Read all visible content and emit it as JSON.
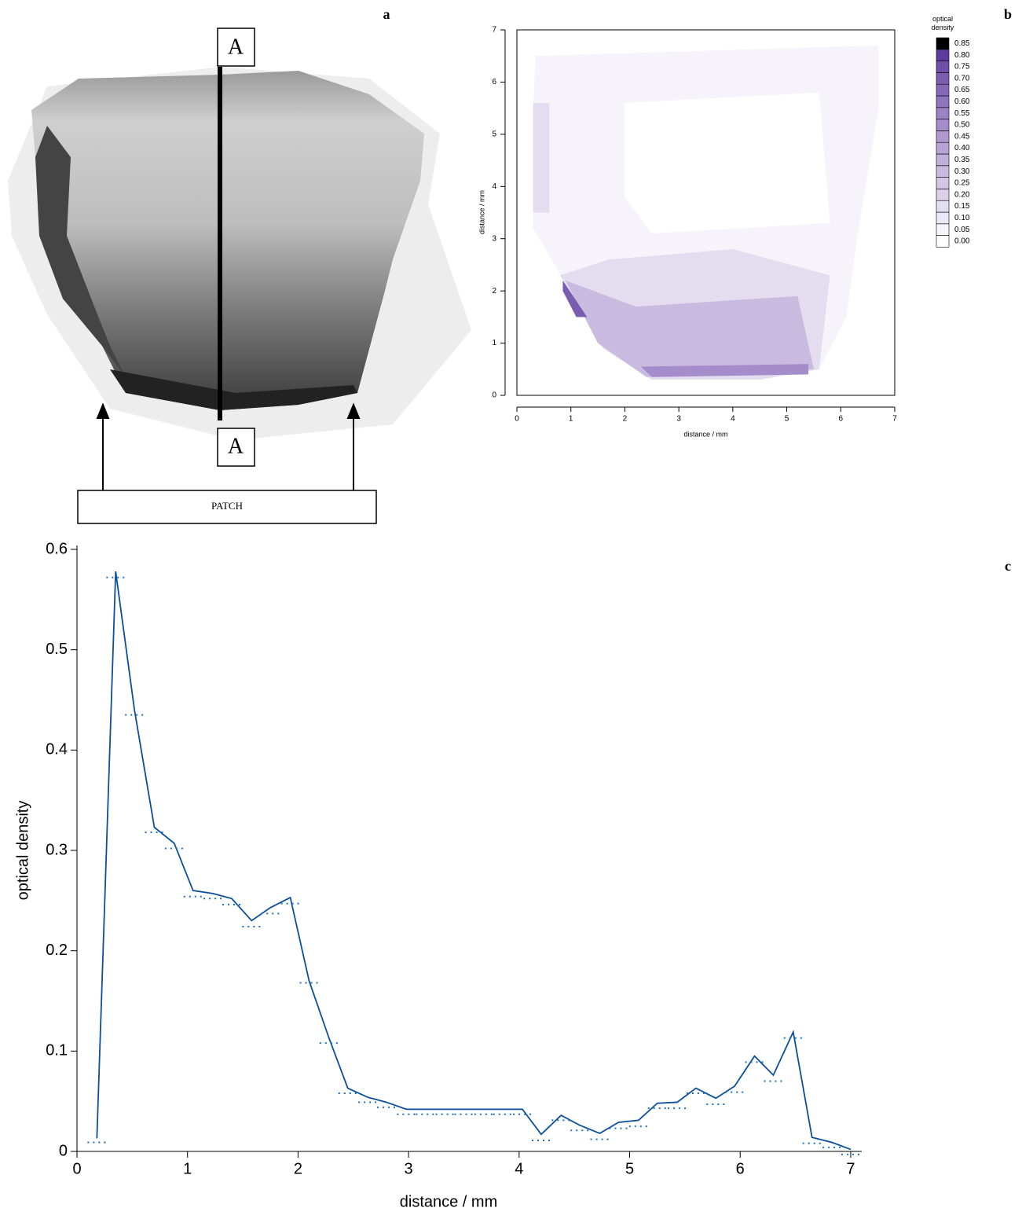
{
  "image_panel": {
    "label": "a",
    "section_top": "A",
    "section_bottom": "A",
    "patch_label": "PATCH"
  },
  "chart_data": [
    {
      "type": "contour",
      "label": "b",
      "x_label": "distance / mm",
      "y_label": "distance / mm",
      "colorbar_title": "optical density",
      "xlim": [
        0,
        7
      ],
      "ylim": [
        0,
        7
      ],
      "xticks": [
        0,
        1,
        2,
        3,
        4,
        5,
        6,
        7
      ],
      "yticks": [
        0,
        1,
        2,
        3,
        4,
        5,
        6,
        7
      ],
      "levels": [
        {
          "value": 0,
          "label": "0.00"
        },
        0.05,
        {
          "value": 0.1,
          "label": "0.10"
        },
        0.15,
        {
          "value": 0.2,
          "label": "0.20"
        },
        0.25,
        {
          "value": 0.3,
          "label": "0.30"
        },
        0.35,
        {
          "value": 0.4,
          "label": "0.40"
        },
        0.45,
        {
          "value": 0.5,
          "label": "0.50"
        },
        0.55,
        {
          "value": 0.6,
          "label": "0.60"
        },
        0.65,
        {
          "value": 0.7,
          "label": "0.70"
        },
        0.75,
        {
          "value": 0.8,
          "label": "0.80"
        },
        0.85
      ],
      "colors": [
        "#ffffff",
        "#f6f3fa",
        "#ede8f5",
        "#e4dcef",
        "#dbd1ea",
        "#d2c6e5",
        "#c9bbe0",
        "#c0afdb",
        "#b7a4d5",
        "#ae99d0",
        "#a48dca",
        "#9b82c5",
        "#9076bf",
        "#8569b8",
        "#7a5cb1",
        "#6e4eaa",
        "#5f3a9f",
        "#000000"
      ],
      "contours": [
        {
          "level": 0.05,
          "x": [
            0.35,
            6.7,
            6.7,
            6.3,
            6.1,
            5.6,
            4.5,
            2.5,
            1.6,
            0.7,
            0.3,
            0.3
          ],
          "y": [
            6.5,
            6.7,
            5.5,
            3,
            1.5,
            0.5,
            0.3,
            0.3,
            0.9,
            2.5,
            3.2,
            5.5
          ]
        },
        {
          "level": 0,
          "x": [
            2,
            5.6,
            5.8,
            2.5,
            2
          ],
          "y": [
            5.6,
            5.8,
            3.3,
            3.1,
            3.8
          ]
        },
        {
          "level": 0.15,
          "x": [
            0.3,
            0.6,
            0.6,
            0.3
          ],
          "y": [
            5.6,
            5.6,
            3.5,
            3.5
          ]
        },
        {
          "level": 0.15,
          "x": [
            0.8,
            1.7,
            4,
            5.8,
            5.6,
            4.5,
            2.5,
            1.6
          ],
          "y": [
            2.3,
            2.6,
            2.8,
            2.3,
            0.5,
            0.3,
            0.3,
            0.9
          ]
        },
        {
          "level": 0.3,
          "x": [
            0.9,
            2.2,
            5.2,
            5.5,
            2.4,
            1.5
          ],
          "y": [
            2.2,
            1.7,
            1.9,
            0.5,
            0.35,
            1
          ]
        },
        {
          "level": 0.5,
          "x": [
            2.3,
            5.4,
            5.4,
            2.5
          ],
          "y": [
            0.55,
            0.6,
            0.4,
            0.35
          ]
        },
        {
          "level": 0.7,
          "x": [
            0.85,
            1.3,
            1.1,
            0.85
          ],
          "y": [
            2.2,
            1.5,
            1.5,
            2
          ]
        }
      ]
    },
    {
      "type": "line",
      "label": "c",
      "x_label": "distance / mm",
      "y_label": "optical density",
      "xlim": [
        0,
        7.1
      ],
      "ylim": [
        0,
        0.6
      ],
      "xticks": [
        0,
        1,
        2,
        3,
        4,
        5,
        6,
        7
      ],
      "yticks": [
        0,
        0.1,
        0.2,
        0.3,
        0.4,
        0.5,
        0.6
      ],
      "x": [
        0.18,
        0.35,
        0.52,
        0.7,
        0.88,
        1.05,
        1.23,
        1.4,
        1.58,
        1.75,
        1.93,
        2.1,
        2.28,
        2.45,
        2.63,
        2.8,
        2.98,
        3.15,
        3.33,
        3.5,
        3.68,
        3.85,
        4.03,
        4.2,
        4.38,
        4.55,
        4.73,
        4.9,
        5.08,
        5.25,
        5.43,
        5.6,
        5.78,
        5.95,
        6.13,
        6.3,
        6.48,
        6.65,
        6.83,
        7
      ],
      "series": [
        {
          "color": "#0b4f9c",
          "style": "solid",
          "values": [
            0.013,
            0.578,
            0.44,
            0.323,
            0.307,
            0.26,
            0.257,
            0.252,
            0.23,
            0.243,
            0.253,
            0.17,
            0.113,
            0.063,
            0.054,
            0.049,
            0.042,
            0.042,
            0.042,
            0.042,
            0.042,
            0.042,
            0.042,
            0.017,
            0.036,
            0.026,
            0.018,
            0.029,
            0.031,
            0.048,
            0.049,
            0.063,
            0.053,
            0.065,
            0.095,
            0.076,
            0.119,
            0.014,
            0.009,
            0.002
          ]
        },
        {
          "color": "#1f6fc0",
          "style": "dotted",
          "values": [
            0.009,
            0.572,
            0.435,
            0.318,
            0.302,
            0.254,
            0.252,
            0.246,
            0.224,
            0.237,
            0.247,
            0.168,
            0.108,
            0.058,
            0.049,
            0.044,
            0.037,
            0.037,
            0.037,
            0.037,
            0.037,
            0.037,
            0.037,
            0.011,
            0.031,
            0.021,
            0.012,
            0.023,
            0.025,
            0.043,
            0.043,
            0.058,
            0.047,
            0.059,
            0.089,
            0.07,
            0.113,
            0.008,
            0.004,
            -0.003
          ]
        }
      ]
    }
  ]
}
